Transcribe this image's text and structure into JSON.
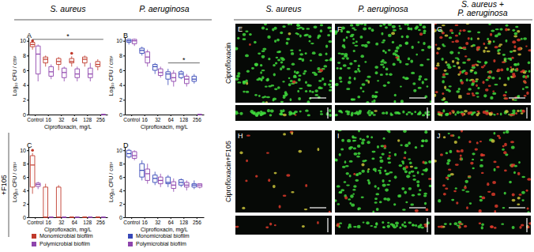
{
  "chart_data": [
    {
      "panel": "A",
      "type": "box",
      "y_label": "Log₁₀ CFU / cm²",
      "x_label": "Ciprofloxacin, mg/L",
      "categories": [
        "Control",
        "16",
        "32",
        "64",
        "128",
        "256"
      ],
      "ylim": [
        0,
        10.5
      ],
      "yticks": [
        0,
        2,
        4,
        6,
        8,
        10
      ],
      "series": [
        {
          "name": "Monomicrobial biofilm",
          "color": "#c0392b",
          "values": [
            [
              8.8,
              9.2,
              9.5,
              9.8,
              9.9
            ],
            [
              6.5,
              7.0,
              7.5,
              7.8,
              8.0
            ],
            [
              6.0,
              6.8,
              7.2,
              7.6,
              7.8
            ],
            [
              6.5,
              7.0,
              7.2,
              7.6,
              7.9
            ],
            [
              6.5,
              7.0,
              7.5,
              7.8,
              8.0
            ],
            [
              6.0,
              6.5,
              6.8,
              7.2,
              7.5
            ]
          ],
          "outliers": [
            [
              10.0
            ],
            [],
            [],
            [
              8.3
            ],
            [],
            []
          ]
        },
        {
          "name": "Polymicrobial biofilm",
          "color": "#8e44ad",
          "values": [
            [
              4.5,
              5.5,
              8.2,
              9.3,
              9.5
            ],
            [
              4.8,
              5.2,
              5.8,
              6.5,
              6.8
            ],
            [
              4.5,
              5.0,
              5.7,
              6.3,
              6.5
            ],
            [
              4.5,
              5.0,
              5.5,
              6.2,
              6.5
            ],
            [
              4.5,
              5.0,
              5.5,
              6.3,
              7.0
            ],
            [
              0,
              0,
              0,
              0,
              0
            ]
          ],
          "outliers": [
            [],
            [],
            [],
            [],
            [],
            []
          ]
        }
      ],
      "annotations": [
        {
          "text": "*",
          "from": 0,
          "to": 5,
          "y": 10.2
        }
      ]
    },
    {
      "panel": "B",
      "type": "box",
      "y_label": "Log₁₀ CFU / cm²",
      "x_label": "Ciprofloxacin, mg/L",
      "categories": [
        "Control",
        "16",
        "32",
        "64",
        "128",
        "256"
      ],
      "ylim": [
        0,
        10.5
      ],
      "yticks": [
        0,
        2,
        4,
        6,
        8,
        10
      ],
      "series": [
        {
          "name": "Monomicrobial biofilm",
          "color": "#3848b8",
          "values": [
            [
              9.5,
              9.8,
              10.0,
              10.2,
              10.3
            ],
            [
              8.0,
              8.3,
              8.7,
              9.0,
              9.2
            ],
            [
              5.5,
              6.0,
              6.5,
              6.8,
              7.0
            ],
            [
              4.0,
              4.8,
              5.5,
              5.8,
              6.2
            ],
            [
              4.8,
              5.0,
              5.5,
              5.8,
              6.0
            ],
            [
              4.2,
              4.5,
              4.8,
              5.2,
              5.5
            ]
          ],
          "outliers": [
            [],
            [],
            [],
            [],
            [],
            []
          ]
        },
        {
          "name": "Polymicrobial biofilm",
          "color": "#8e44ad",
          "values": [
            [
              9.3,
              9.6,
              10.0,
              10.2,
              10.3
            ],
            [
              6.5,
              7.0,
              7.8,
              8.5,
              8.8
            ],
            [
              5.0,
              5.3,
              5.7,
              6.2,
              6.5
            ],
            [
              3.8,
              4.5,
              5.0,
              5.6,
              6.0
            ],
            [
              3.8,
              4.2,
              4.8,
              5.2,
              5.5
            ],
            [
              0,
              0,
              0,
              0,
              0
            ]
          ],
          "outliers": [
            [],
            [],
            [],
            [],
            [],
            []
          ]
        }
      ],
      "annotations": [
        {
          "text": "*",
          "from": 3,
          "to": 5,
          "y": 7.0
        }
      ]
    },
    {
      "panel": "C",
      "type": "box",
      "y_label": "Log₁₀ CFU / cm²",
      "x_label": "Ciprofloxacin, mg/L",
      "categories": [
        "Control",
        "16",
        "32",
        "64",
        "128",
        "256"
      ],
      "ylim": [
        0,
        10.5
      ],
      "yticks": [
        0,
        2,
        4,
        6,
        8,
        10
      ],
      "legend": "bottom",
      "series": [
        {
          "name": "Monomicrobial biofilm",
          "color": "#c0392b",
          "values": [
            [
              3.5,
              4.5,
              7.8,
              9.2,
              9.6
            ],
            [
              0,
              0,
              0,
              4.5,
              5.0
            ],
            [
              0,
              0,
              0,
              4.5,
              4.8
            ],
            [
              0,
              0,
              0,
              0,
              0
            ],
            [
              0,
              0,
              0,
              0,
              0
            ],
            [
              0,
              0,
              0,
              0,
              0
            ]
          ],
          "outliers": [
            [
              10.0
            ],
            [],
            [],
            [],
            [],
            []
          ]
        },
        {
          "name": "Polymicrobial biofilm",
          "color": "#8e44ad",
          "values": [
            [
              4.2,
              4.6,
              4.9,
              5.1,
              5.3
            ],
            [
              0,
              0,
              0,
              0,
              0
            ],
            [
              0,
              0,
              0,
              0,
              0
            ],
            [
              0,
              0,
              0,
              0,
              0
            ],
            [
              0,
              0,
              0,
              0,
              0
            ],
            [
              0,
              0,
              0,
              0,
              0
            ]
          ],
          "outliers": [
            [],
            [],
            [],
            [],
            [],
            []
          ]
        }
      ]
    },
    {
      "panel": "D",
      "type": "box",
      "y_label": "Log₁₀ CFU / cm²",
      "x_label": "Ciprofloxacin, mg/L",
      "categories": [
        "Control",
        "16",
        "32",
        "64",
        "128",
        "256"
      ],
      "ylim": [
        0,
        10.5
      ],
      "yticks": [
        0,
        2,
        4,
        6,
        8,
        10
      ],
      "legend": "bottom",
      "series": [
        {
          "name": "Monomicrobial biofilm",
          "color": "#3848b8",
          "values": [
            [
              8.8,
              9.0,
              9.5,
              10.0,
              10.2
            ],
            [
              5.5,
              6.0,
              7.0,
              8.0,
              8.5
            ],
            [
              4.8,
              5.2,
              5.8,
              6.3,
              6.8
            ],
            [
              4.5,
              5.0,
              5.2,
              6.0,
              6.3
            ],
            [
              4.5,
              4.8,
              5.2,
              5.6,
              5.8
            ],
            [
              4.2,
              4.5,
              4.8,
              5.0,
              5.5
            ]
          ],
          "outliers": [
            [],
            [],
            [],
            [],
            [],
            []
          ]
        },
        {
          "name": "Polymicrobial biofilm",
          "color": "#8e44ad",
          "values": [
            [
              8.5,
              8.8,
              9.2,
              9.8,
              10.0
            ],
            [
              5.0,
              5.5,
              6.5,
              7.2,
              8.0
            ],
            [
              4.5,
              5.0,
              5.5,
              6.0,
              6.5
            ],
            [
              3.8,
              4.3,
              4.8,
              5.3,
              5.8
            ],
            [
              4.0,
              4.5,
              4.8,
              5.2,
              5.5
            ],
            [
              4.3,
              4.5,
              4.8,
              5.0,
              5.0
            ]
          ],
          "outliers": [
            [],
            [],
            [],
            [],
            [],
            []
          ]
        }
      ]
    }
  ],
  "figure": {
    "headers": [
      [
        "S. aureus"
      ],
      [
        "P. aeruginosa"
      ],
      [
        "S. aureus"
      ],
      [
        "P. aeruginosa"
      ],
      [
        "S. aureus +",
        "P. aeruginosa"
      ]
    ],
    "row_label": "+F105",
    "images": {
      "panels": [
        "E",
        "F",
        "G",
        "H",
        "I",
        "J"
      ],
      "row_labels": [
        "Ciprofloxacin",
        "Ciprofloxacin+F105"
      ]
    }
  }
}
